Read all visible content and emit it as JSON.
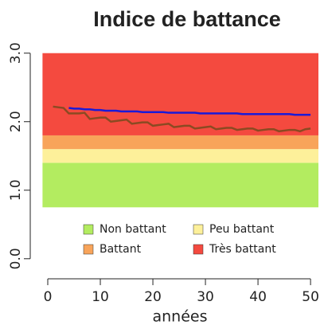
{
  "chart_data": {
    "type": "line",
    "title": "Indice de battance",
    "x_label": "années",
    "xlim": [
      -1,
      51.5
    ],
    "xticks": [
      0,
      10,
      20,
      30,
      40,
      50
    ],
    "ylim": [
      -0.2,
      3.02
    ],
    "yticks": [
      {
        "value": 0,
        "label": "0.0"
      },
      {
        "value": 1,
        "label": "1.0"
      },
      {
        "value": 2,
        "label": "2.0"
      },
      {
        "value": 3,
        "label": "3.0"
      }
    ],
    "bands": [
      {
        "name": "Non battant",
        "from": 0.75,
        "to": 1.4,
        "color": "#b3ec60"
      },
      {
        "name": "Peu battant",
        "from": 1.4,
        "to": 1.6,
        "color": "#fdf09a"
      },
      {
        "name": "Battant",
        "from": 1.6,
        "to": 1.8,
        "color": "#f8a45a"
      },
      {
        "name": "Très battant",
        "from": 1.8,
        "to": 3.0,
        "color": "#f44a3f"
      }
    ],
    "series": [
      {
        "color": "#8b4a22",
        "x": [
          1,
          2,
          3,
          4,
          5,
          6,
          7,
          8,
          9,
          10,
          11,
          12,
          13,
          14,
          15,
          16,
          17,
          18,
          19,
          20,
          21,
          22,
          23,
          24,
          25,
          26,
          27,
          28,
          29,
          30,
          31,
          32,
          33,
          34,
          35,
          36,
          37,
          38,
          39,
          40,
          41,
          42,
          43,
          44,
          45,
          46,
          47,
          48,
          49,
          50
        ],
        "values": [
          2.22,
          2.21,
          2.2,
          2.12,
          2.12,
          2.12,
          2.13,
          2.04,
          2.05,
          2.06,
          2.06,
          2.0,
          2.01,
          2.02,
          2.03,
          1.97,
          1.98,
          1.99,
          1.99,
          1.94,
          1.95,
          1.96,
          1.97,
          1.92,
          1.93,
          1.94,
          1.94,
          1.9,
          1.91,
          1.92,
          1.93,
          1.89,
          1.9,
          1.91,
          1.91,
          1.88,
          1.89,
          1.9,
          1.9,
          1.87,
          1.88,
          1.89,
          1.89,
          1.86,
          1.87,
          1.88,
          1.88,
          1.86,
          1.89,
          1.9
        ]
      },
      {
        "color": "#1a1ad8",
        "x": [
          4,
          5,
          6,
          7,
          8,
          9,
          10,
          11,
          12,
          13,
          14,
          15,
          16,
          17,
          18,
          19,
          20,
          21,
          22,
          23,
          24,
          25,
          26,
          27,
          28,
          29,
          30,
          31,
          32,
          33,
          34,
          35,
          36,
          37,
          38,
          39,
          40,
          41,
          42,
          43,
          44,
          45,
          46,
          47,
          48,
          49,
          50
        ],
        "values": [
          2.2,
          2.19,
          2.19,
          2.18,
          2.18,
          2.17,
          2.17,
          2.16,
          2.16,
          2.16,
          2.15,
          2.15,
          2.15,
          2.15,
          2.14,
          2.14,
          2.14,
          2.14,
          2.14,
          2.13,
          2.13,
          2.13,
          2.13,
          2.13,
          2.13,
          2.12,
          2.12,
          2.12,
          2.12,
          2.12,
          2.12,
          2.12,
          2.12,
          2.11,
          2.11,
          2.11,
          2.11,
          2.11,
          2.11,
          2.11,
          2.11,
          2.11,
          2.11,
          2.1,
          2.1,
          2.1,
          2.1
        ]
      }
    ]
  }
}
